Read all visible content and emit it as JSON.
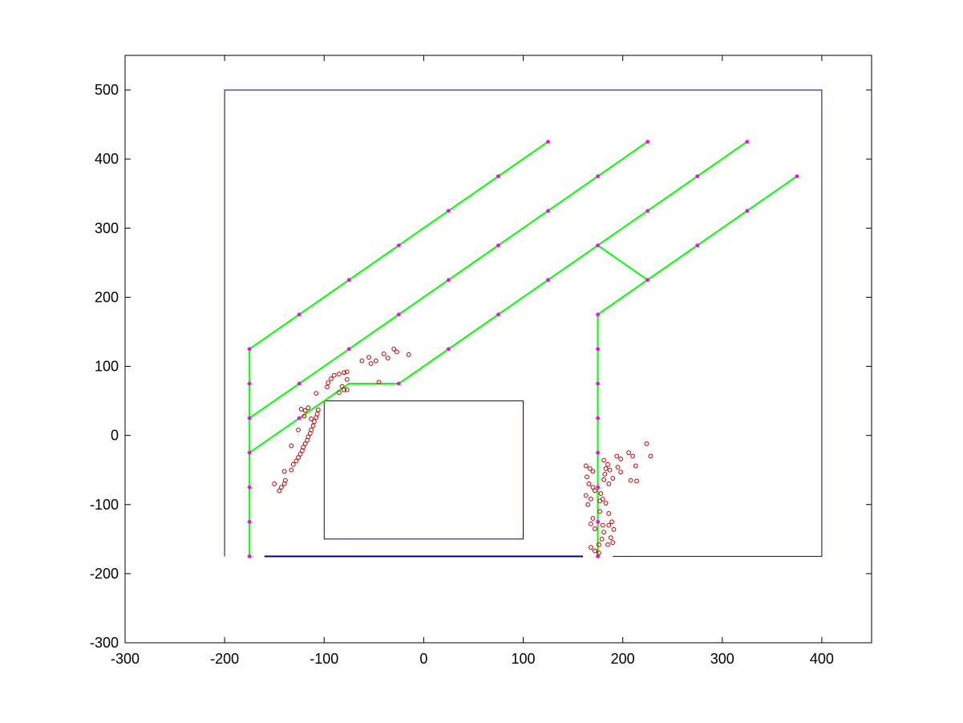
{
  "chart_data": {
    "type": "scatter",
    "title": "",
    "xlabel": "",
    "ylabel": "",
    "xlim": [
      -300,
      450
    ],
    "ylim": [
      -300,
      550
    ],
    "grid": false,
    "x_ticks": [
      "-300",
      "-200",
      "-100",
      "0",
      "100",
      "200",
      "300",
      "400"
    ],
    "y_ticks": [
      "-300",
      "-200",
      "-100",
      "0",
      "100",
      "200",
      "300",
      "400",
      "500"
    ],
    "colors": {
      "walls": "#00007f",
      "graph": "#00ff00",
      "nodes": "#ff00ff",
      "samples": "#bf0000"
    },
    "series": [
      {
        "style": "walls",
        "polylines": [
          [
            [
              -200,
              -175
            ],
            [
              -200,
              500
            ],
            [
              400,
              500
            ],
            [
              400,
              -175
            ],
            [
              190,
              -175
            ]
          ],
          [
            [
              160,
              -175
            ],
            [
              -160,
              -175
            ]
          ],
          [
            [
              -100,
              50
            ],
            [
              100,
              50
            ],
            [
              100,
              -150
            ],
            [
              -100,
              -150
            ],
            [
              -100,
              50
            ]
          ]
        ]
      },
      {
        "style": "graph",
        "polylines": [
          [
            [
              -175,
              -175
            ],
            [
              -175,
              125
            ],
            [
              125,
              425
            ]
          ],
          [
            [
              -175,
              25
            ],
            [
              225,
              425
            ]
          ],
          [
            [
              -175,
              -25
            ],
            [
              -75,
              75
            ],
            [
              -25,
              75
            ],
            [
              175,
              275
            ],
            [
              325,
              425
            ]
          ],
          [
            [
              175,
              -175
            ],
            [
              175,
              175
            ],
            [
              375,
              375
            ]
          ],
          [
            [
              175,
              275
            ],
            [
              225,
              225
            ]
          ]
        ]
      },
      {
        "style": "nodes",
        "points": [
          [
            -175,
            125
          ],
          [
            -175,
            75
          ],
          [
            -175,
            25
          ],
          [
            -175,
            -25
          ],
          [
            -175,
            -75
          ],
          [
            -175,
            -125
          ],
          [
            -175,
            -175
          ],
          [
            -125,
            175
          ],
          [
            -75,
            225
          ],
          [
            -25,
            275
          ],
          [
            25,
            325
          ],
          [
            75,
            375
          ],
          [
            125,
            425
          ],
          [
            -125,
            75
          ],
          [
            -75,
            125
          ],
          [
            -25,
            175
          ],
          [
            25,
            225
          ],
          [
            75,
            275
          ],
          [
            125,
            325
          ],
          [
            175,
            375
          ],
          [
            225,
            425
          ],
          [
            -125,
            25
          ],
          [
            -25,
            75
          ],
          [
            25,
            125
          ],
          [
            75,
            175
          ],
          [
            125,
            225
          ],
          [
            175,
            275
          ],
          [
            225,
            325
          ],
          [
            275,
            375
          ],
          [
            325,
            425
          ],
          [
            175,
            175
          ],
          [
            175,
            125
          ],
          [
            175,
            75
          ],
          [
            175,
            25
          ],
          [
            175,
            -25
          ],
          [
            175,
            -75
          ],
          [
            175,
            -125
          ],
          [
            175,
            -175
          ],
          [
            225,
            225
          ],
          [
            275,
            275
          ],
          [
            325,
            325
          ],
          [
            375,
            375
          ]
        ]
      },
      {
        "style": "samples",
        "points": [
          [
            -150,
            -70
          ],
          [
            -145,
            -80
          ],
          [
            -143,
            -75
          ],
          [
            -140,
            -70
          ],
          [
            -139,
            -65
          ],
          [
            -140,
            -52
          ],
          [
            -133,
            -50
          ],
          [
            -131,
            -42
          ],
          [
            -128,
            -37
          ],
          [
            -126,
            -32
          ],
          [
            -124,
            -27
          ],
          [
            -122,
            -22
          ],
          [
            -121,
            -17
          ],
          [
            -119,
            -12
          ],
          [
            -117,
            -7
          ],
          [
            -116,
            -2
          ],
          [
            -114,
            3
          ],
          [
            -113,
            8
          ],
          [
            -111,
            14
          ],
          [
            -110,
            20
          ],
          [
            -108,
            26
          ],
          [
            -107,
            31
          ],
          [
            -106,
            37
          ],
          [
            -116,
            40
          ],
          [
            -119,
            36
          ],
          [
            -123,
            38
          ],
          [
            -126,
            8
          ],
          [
            -133,
            -15
          ],
          [
            -120,
            28
          ],
          [
            -113,
            24
          ],
          [
            -108,
            61
          ],
          [
            -97,
            70
          ],
          [
            -96,
            76
          ],
          [
            -93,
            82
          ],
          [
            -90,
            87
          ],
          [
            -85,
            89
          ],
          [
            -80,
            91
          ],
          [
            -77,
            92
          ],
          [
            -77,
            81
          ],
          [
            -82,
            71
          ],
          [
            -80,
            66
          ],
          [
            -85,
            62
          ],
          [
            -77,
            66
          ],
          [
            -62,
            108
          ],
          [
            -55,
            113
          ],
          [
            -53,
            104
          ],
          [
            -48,
            108
          ],
          [
            -45,
            77
          ],
          [
            -40,
            118
          ],
          [
            -36,
            112
          ],
          [
            -30,
            125
          ],
          [
            -27,
            121
          ],
          [
            -15,
            117
          ],
          [
            163,
            -44
          ],
          [
            167,
            -48
          ],
          [
            170,
            -52
          ],
          [
            164,
            -60
          ],
          [
            166,
            -70
          ],
          [
            170,
            -75
          ],
          [
            163,
            -87
          ],
          [
            168,
            -92
          ],
          [
            165,
            -100
          ],
          [
            172,
            -80
          ],
          [
            170,
            -120
          ],
          [
            168,
            -128
          ],
          [
            172,
            -135
          ],
          [
            168,
            -162
          ],
          [
            172,
            -167
          ],
          [
            176,
            -170
          ],
          [
            179,
            -150
          ],
          [
            181,
            -140
          ],
          [
            177,
            -110
          ],
          [
            178,
            -84
          ],
          [
            181,
            -64
          ],
          [
            182,
            -56
          ],
          [
            183,
            -48
          ],
          [
            185,
            -42
          ],
          [
            181,
            -36
          ],
          [
            187,
            -50
          ],
          [
            190,
            -62
          ],
          [
            186,
            -70
          ],
          [
            180,
            -92
          ],
          [
            183,
            -98
          ],
          [
            186,
            -113
          ],
          [
            189,
            -125
          ],
          [
            186,
            -130
          ],
          [
            191,
            -136
          ],
          [
            188,
            -148
          ],
          [
            190,
            -155
          ],
          [
            185,
            -158
          ],
          [
            176,
            -158
          ],
          [
            180,
            -130
          ],
          [
            177,
            -95
          ],
          [
            194,
            -30
          ],
          [
            198,
            -34
          ],
          [
            195,
            -46
          ],
          [
            198,
            -53
          ],
          [
            206,
            -25
          ],
          [
            210,
            -30
          ],
          [
            213,
            -44
          ],
          [
            208,
            -65
          ],
          [
            214,
            -66
          ],
          [
            224,
            -12
          ],
          [
            228,
            -30
          ]
        ]
      }
    ]
  }
}
